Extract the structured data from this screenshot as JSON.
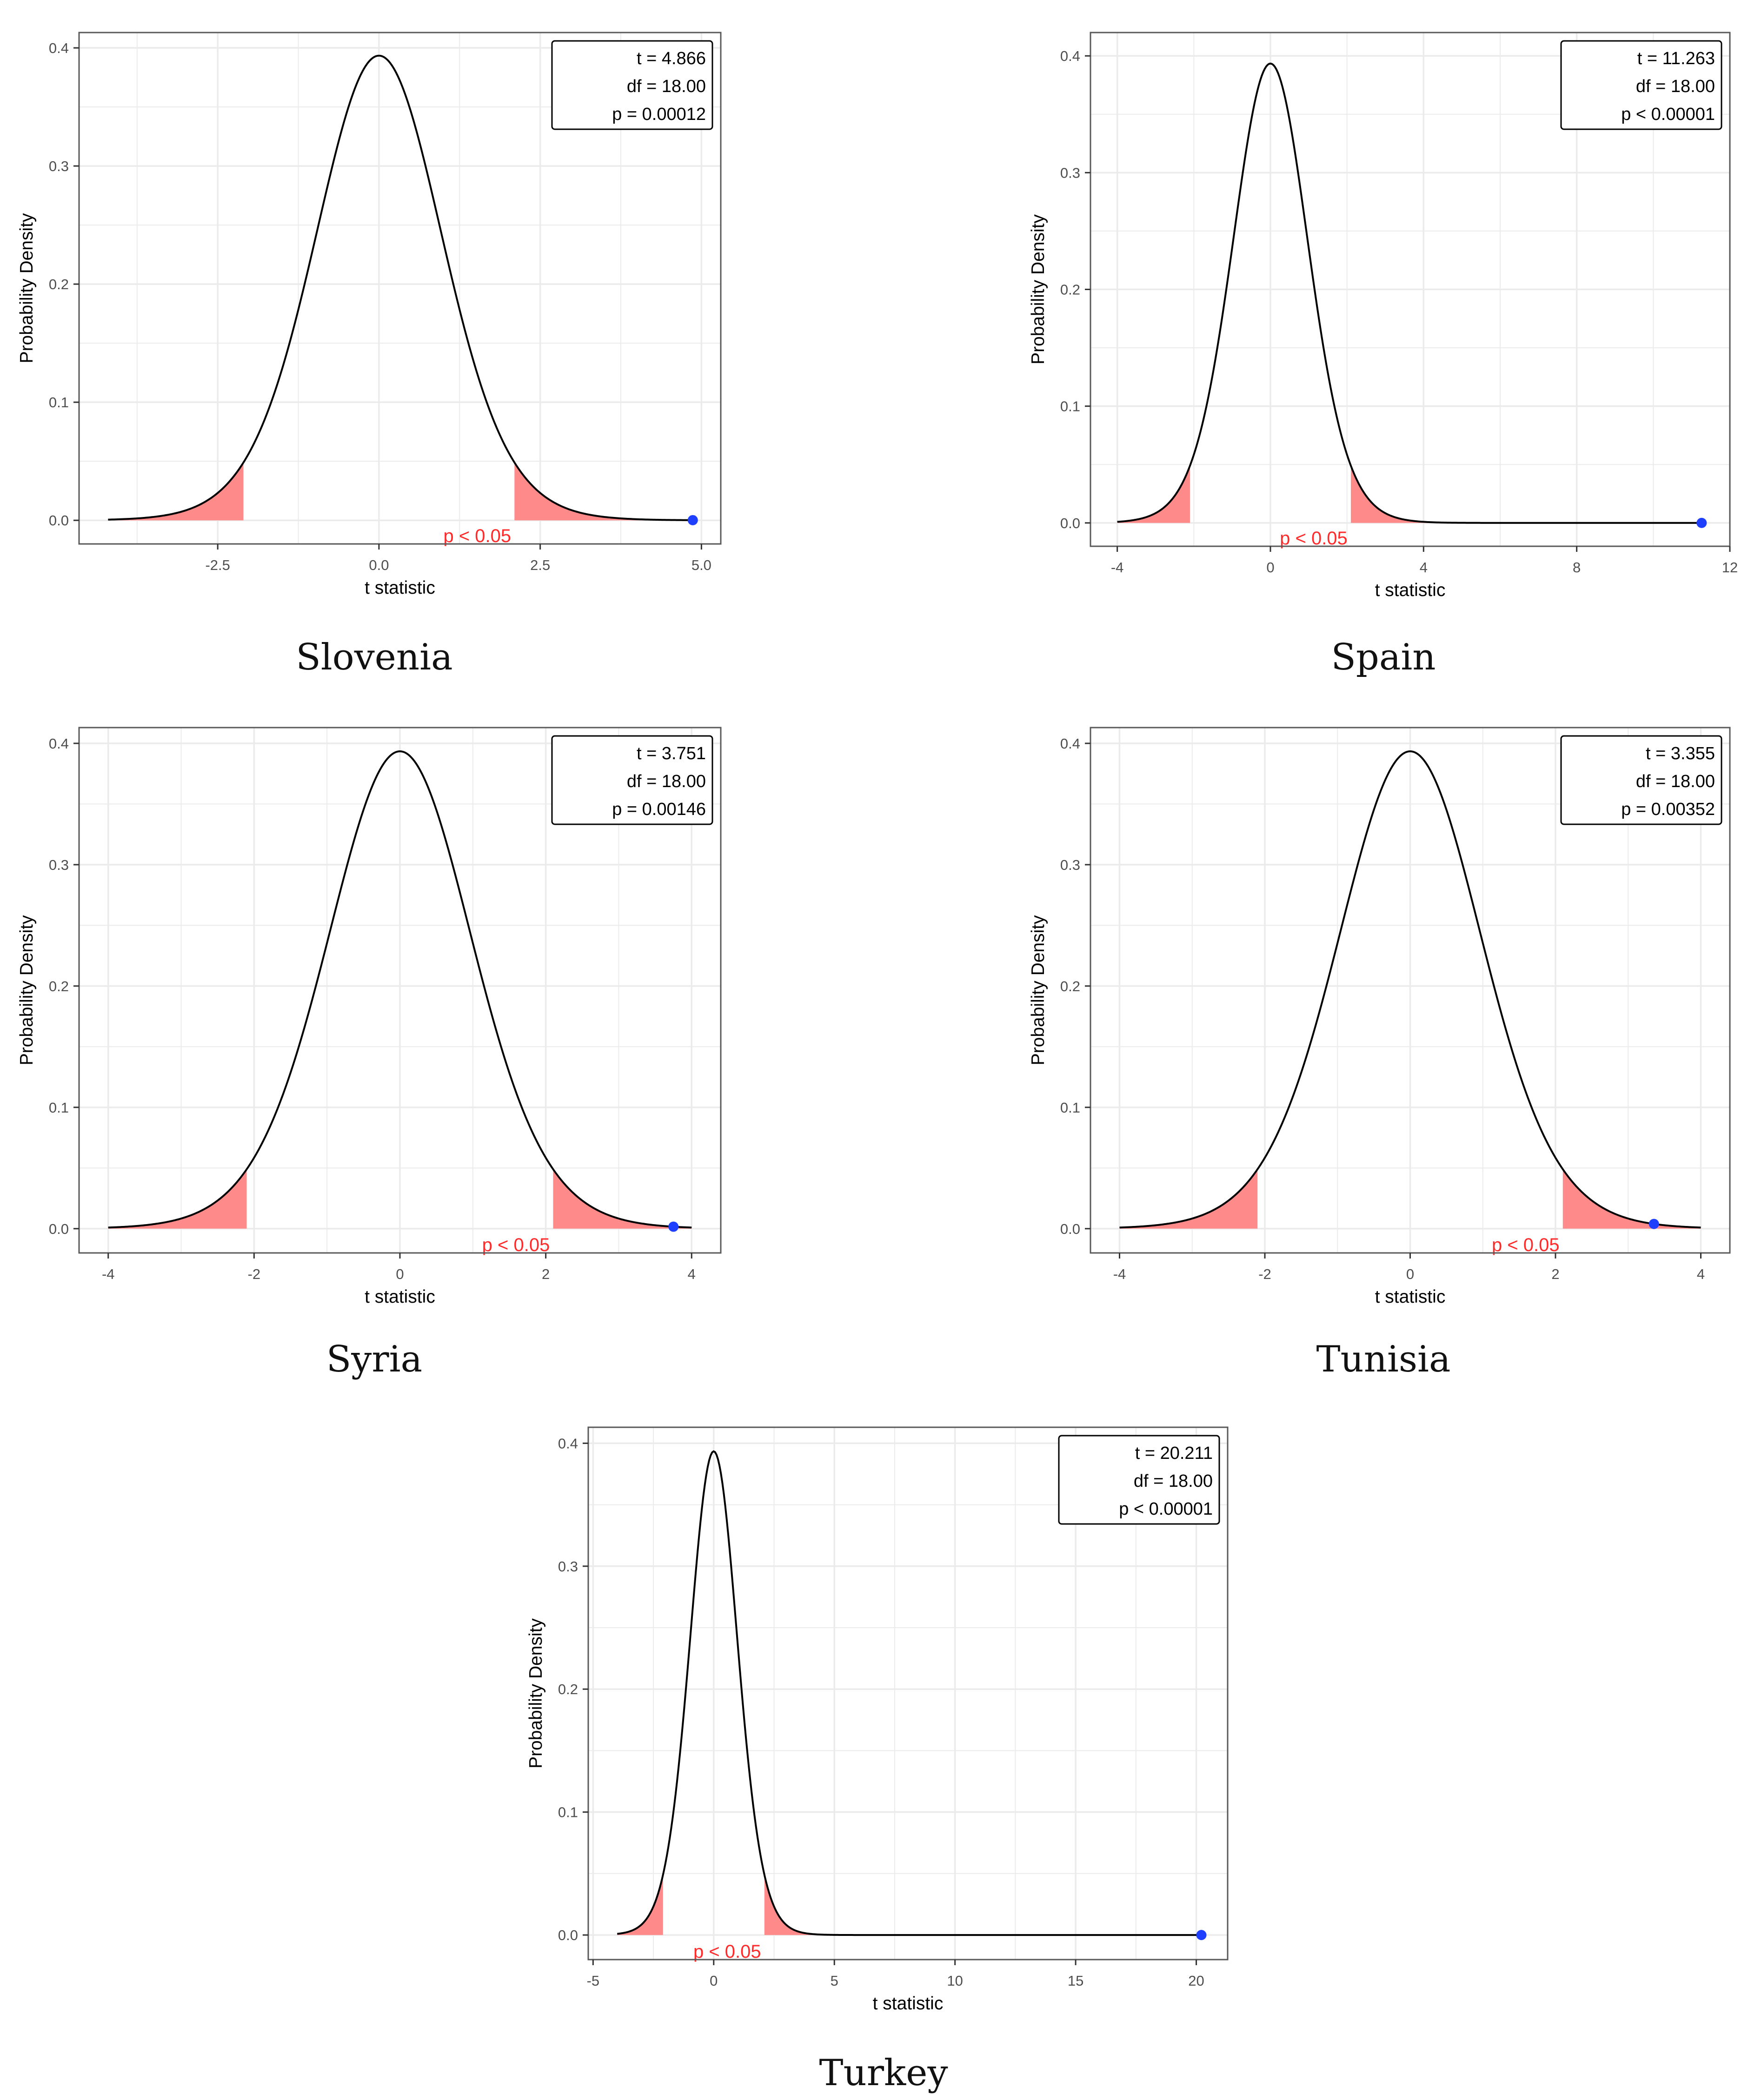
{
  "figure": {
    "ylabel": "Probability Density",
    "xlabel": "t statistic",
    "significance_label": "p < 0.05",
    "colors": {
      "curve": "#000000",
      "rejection_fill": "#ff8a8a",
      "significance_text": "#ff2a2a",
      "point": "#1f3fff",
      "grid": "#ebebeb",
      "panel_border": "#595959"
    }
  },
  "chart_data": [
    {
      "type": "line",
      "country": "Slovenia",
      "title": "Slovenia",
      "xlabel": "t statistic",
      "ylabel": "Probability Density",
      "df": 18,
      "t_value": 4.866,
      "critical_value": 2.101,
      "curve_domain": [
        -4.2,
        4.866
      ],
      "xlim": [
        -4.65,
        5.3
      ],
      "ylim": [
        -0.02,
        0.413
      ],
      "xticks": [
        -2.5,
        0.0,
        2.5,
        5.0
      ],
      "xtick_labels": [
        "-2.5",
        "0.0",
        "2.5",
        "5.0"
      ],
      "yticks": [
        0.0,
        0.1,
        0.2,
        0.3,
        0.4
      ],
      "ytick_labels": [
        "0.0",
        "0.1",
        "0.2",
        "0.3",
        "0.4"
      ],
      "stats_box": [
        "t = 4.866",
        "df = 18.00",
        "p = 0.00012"
      ],
      "significance_label": "p < 0.05"
    },
    {
      "type": "line",
      "country": "Spain",
      "title": "Spain",
      "xlabel": "t statistic",
      "ylabel": "Probability Density",
      "df": 18,
      "t_value": 11.263,
      "critical_value": 2.101,
      "curve_domain": [
        -4.0,
        11.263
      ],
      "xlim": [
        -4.7,
        12.0
      ],
      "ylim": [
        -0.02,
        0.42
      ],
      "xticks": [
        -4,
        0,
        4,
        8,
        12
      ],
      "xtick_labels": [
        "-4",
        "0",
        "4",
        "8",
        "12"
      ],
      "yticks": [
        0.0,
        0.1,
        0.2,
        0.3,
        0.4
      ],
      "ytick_labels": [
        "0.0",
        "0.1",
        "0.2",
        "0.3",
        "0.4"
      ],
      "stats_box": [
        "t = 11.263",
        "df = 18.00",
        "p < 0.00001"
      ],
      "significance_label": "p < 0.05"
    },
    {
      "type": "line",
      "country": "Syria",
      "title": "Syria",
      "xlabel": "t statistic",
      "ylabel": "Probability Density",
      "df": 18,
      "t_value": 3.751,
      "critical_value": 2.101,
      "curve_domain": [
        -4.0,
        4.0
      ],
      "xlim": [
        -4.4,
        4.4
      ],
      "ylim": [
        -0.02,
        0.413
      ],
      "xticks": [
        -4,
        -2,
        0,
        2,
        4
      ],
      "xtick_labels": [
        "-4",
        "-2",
        "0",
        "2",
        "4"
      ],
      "yticks": [
        0.0,
        0.1,
        0.2,
        0.3,
        0.4
      ],
      "ytick_labels": [
        "0.0",
        "0.1",
        "0.2",
        "0.3",
        "0.4"
      ],
      "stats_box": [
        "t = 3.751",
        "df = 18.00",
        "p = 0.00146"
      ],
      "significance_label": "p < 0.05"
    },
    {
      "type": "line",
      "country": "Tunisia",
      "title": "Tunisia",
      "xlabel": "t statistic",
      "ylabel": "Probability Density",
      "df": 18,
      "t_value": 3.355,
      "critical_value": 2.101,
      "curve_domain": [
        -4.0,
        4.0
      ],
      "xlim": [
        -4.4,
        4.4
      ],
      "ylim": [
        -0.02,
        0.413
      ],
      "xticks": [
        -4,
        -2,
        0,
        2,
        4
      ],
      "xtick_labels": [
        "-4",
        "-2",
        "0",
        "2",
        "4"
      ],
      "yticks": [
        0.0,
        0.1,
        0.2,
        0.3,
        0.4
      ],
      "ytick_labels": [
        "0.0",
        "0.1",
        "0.2",
        "0.3",
        "0.4"
      ],
      "stats_box": [
        "t = 3.355",
        "df = 18.00",
        "p = 0.00352"
      ],
      "significance_label": "p < 0.05"
    },
    {
      "type": "line",
      "country": "Turkey",
      "title": "Turkey",
      "xlabel": "t statistic",
      "ylabel": "Probability Density",
      "df": 18,
      "t_value": 20.211,
      "critical_value": 2.101,
      "curve_domain": [
        -4.0,
        20.211
      ],
      "xlim": [
        -5.2,
        21.3
      ],
      "ylim": [
        -0.02,
        0.413
      ],
      "xticks": [
        -5,
        0,
        5,
        10,
        15,
        20
      ],
      "xtick_labels": [
        "-5",
        "0",
        "5",
        "10",
        "15",
        "20"
      ],
      "yticks": [
        0.0,
        0.1,
        0.2,
        0.3,
        0.4
      ],
      "ytick_labels": [
        "0.0",
        "0.1",
        "0.2",
        "0.3",
        "0.4"
      ],
      "stats_box": [
        "t = 20.211",
        "df = 18.00",
        "p < 0.00001"
      ],
      "significance_label": "p < 0.05"
    }
  ]
}
